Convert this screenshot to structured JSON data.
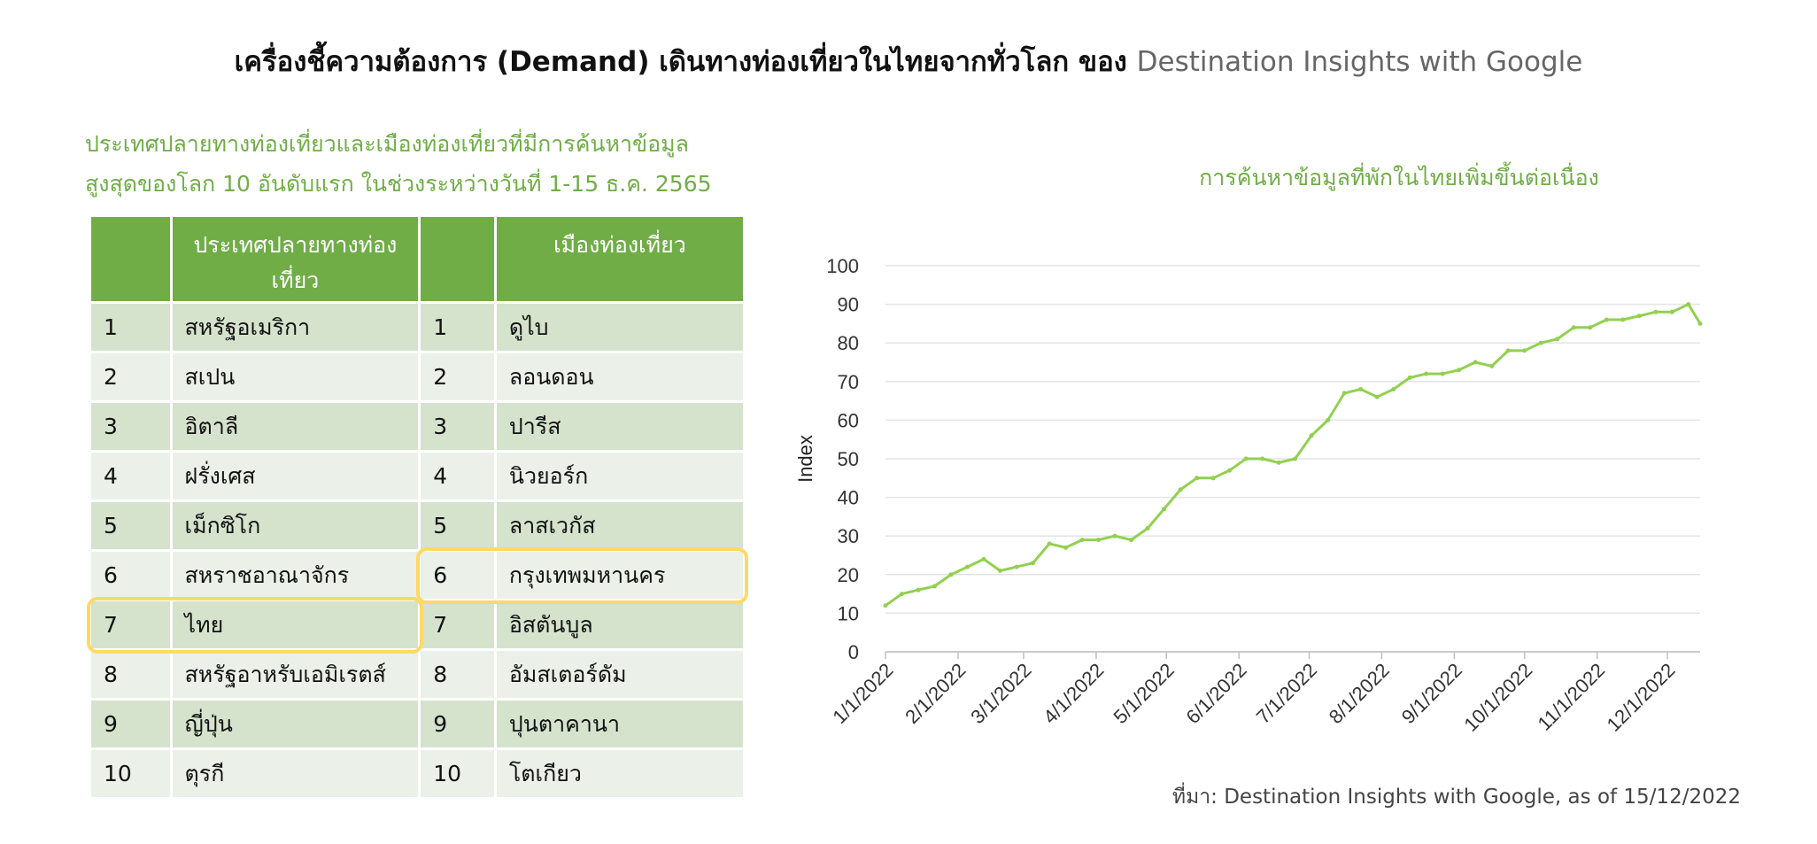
{
  "title": {
    "main": "เครื่องชี้ความต้องการ (Demand) เดินทางท่องเที่ยวในไทยจากทั่วโลก ของ",
    "brand": "Destination Insights with Google"
  },
  "left_heading": {
    "line1": "ประเทศปลายทางท่องเที่ยวและเมืองท่องเที่ยวที่มีการค้นหาข้อมูล",
    "line2": "สูงสุดของโลก 10 อันดับแรก ในช่วงระหว่างวันที่ 1-15 ธ.ค. 2565"
  },
  "table": {
    "headers": [
      "",
      "ประเทศปลายทางท่องเที่ยว",
      "",
      "เมืองท่องเที่ยว"
    ],
    "rows": [
      {
        "rank": "1",
        "country": "สหรัฐอเมริกา",
        "rank2": "1",
        "city": "ดูไบ"
      },
      {
        "rank": "2",
        "country": "สเปน",
        "rank2": "2",
        "city": "ลอนดอน"
      },
      {
        "rank": "3",
        "country": "อิตาลี",
        "rank2": "3",
        "city": "ปารีส"
      },
      {
        "rank": "4",
        "country": "ฝรั่งเศส",
        "rank2": "4",
        "city": "นิวยอร์ก"
      },
      {
        "rank": "5",
        "country": "เม็กซิโก",
        "rank2": "5",
        "city": "ลาสเวกัส"
      },
      {
        "rank": "6",
        "country": "สหราชอาณาจักร",
        "rank2": "6",
        "city": "กรุงเทพมหานคร"
      },
      {
        "rank": "7",
        "country": "ไทย",
        "rank2": "7",
        "city": "อิสตันบูล"
      },
      {
        "rank": "8",
        "country": "สหรัฐอาหรับเอมิเรตส์",
        "rank2": "8",
        "city": "อัมสเตอร์ดัม"
      },
      {
        "rank": "9",
        "country": "ญี่ปุ่น",
        "rank2": "9",
        "city": "ปุนตาคานา"
      },
      {
        "rank": "10",
        "country": "ตุรกี",
        "rank2": "10",
        "city": "โตเกียว"
      }
    ],
    "highlighted_country_rank": "7",
    "highlighted_city_rank": "6"
  },
  "chart_data": {
    "type": "line",
    "title": "การค้นหาข้อมูลที่พักในไทยเพิ่มขึ้นต่อเนื่อง",
    "xlabel": "",
    "ylabel": "Index",
    "ylim": [
      0,
      100
    ],
    "yticks": [
      0,
      10,
      20,
      30,
      40,
      50,
      60,
      70,
      80,
      90,
      100
    ],
    "xticks": [
      "1/1/2022",
      "2/1/2022",
      "3/1/2022",
      "4/1/2022",
      "5/1/2022",
      "6/1/2022",
      "7/1/2022",
      "8/1/2022",
      "9/1/2022",
      "10/1/2022",
      "11/1/2022",
      "12/1/2022"
    ],
    "x_start": "1/1/2022",
    "x_end": "12/15/2022",
    "grid": true,
    "legend": false,
    "line_color": "#92D050",
    "series": [
      {
        "x": [
          "1/1/2022",
          "1/8/2022",
          "1/15/2022",
          "1/22/2022",
          "1/29/2022",
          "2/5/2022",
          "2/12/2022",
          "2/19/2022",
          "2/26/2022",
          "3/5/2022",
          "3/12/2022",
          "3/19/2022",
          "3/26/2022",
          "4/2/2022",
          "4/9/2022",
          "4/16/2022",
          "4/23/2022",
          "4/30/2022",
          "5/7/2022",
          "5/14/2022",
          "5/21/2022",
          "5/28/2022",
          "6/4/2022",
          "6/11/2022",
          "6/18/2022",
          "6/25/2022",
          "7/2/2022",
          "7/9/2022",
          "7/16/2022",
          "7/23/2022",
          "7/30/2022",
          "8/6/2022",
          "8/13/2022",
          "8/20/2022",
          "8/27/2022",
          "9/3/2022",
          "9/10/2022",
          "9/17/2022",
          "9/24/2022",
          "10/1/2022",
          "10/8/2022",
          "10/15/2022",
          "10/22/2022",
          "10/29/2022",
          "11/5/2022",
          "11/12/2022",
          "11/19/2022",
          "11/26/2022",
          "12/3/2022",
          "12/10/2022",
          "12/15/2022"
        ],
        "values": [
          12,
          15,
          16,
          17,
          20,
          22,
          24,
          21,
          22,
          23,
          28,
          27,
          29,
          29,
          30,
          29,
          32,
          37,
          42,
          45,
          45,
          47,
          50,
          50,
          49,
          50,
          56,
          60,
          67,
          68,
          66,
          68,
          71,
          72,
          72,
          73,
          75,
          74,
          78,
          78,
          80,
          81,
          84,
          84,
          86,
          86,
          87,
          88,
          88,
          90,
          85
        ]
      }
    ]
  },
  "source": "ที่มา: Destination Insights with Google, as of 15/12/2022"
}
